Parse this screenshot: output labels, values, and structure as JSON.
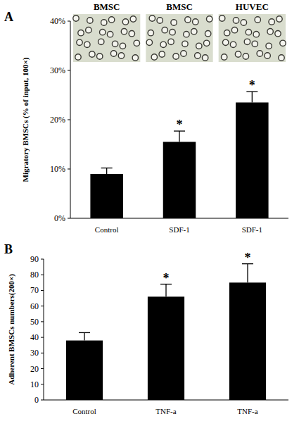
{
  "chart_data": [
    {
      "type": "bar",
      "panel": "A",
      "image_labels": [
        "BMSC",
        "BMSC",
        "HUVEC"
      ],
      "ylabel": "Migratory BMSCs (% of input, 100×)",
      "categories": [
        "Control",
        "SDF-1",
        "SDF-1"
      ],
      "values": [
        9,
        15.5,
        23.5
      ],
      "errors": [
        1.2,
        2.2,
        2.2
      ],
      "significance": [
        null,
        "*",
        "*"
      ],
      "color": "#000000",
      "ylim": [
        0,
        40
      ],
      "yticks": [
        {
          "value": 0,
          "label": "0%"
        },
        {
          "value": 10,
          "label": "10%"
        },
        {
          "value": 20,
          "label": "20%"
        },
        {
          "value": 30,
          "label": "30%"
        },
        {
          "value": 40,
          "label": "40%"
        }
      ],
      "grid": false
    },
    {
      "type": "bar",
      "panel": "B",
      "ylabel": "Adherent BMSCs numbers(200×)",
      "categories": [
        "Control",
        "TNF-a",
        "TNF-a"
      ],
      "values": [
        38,
        66,
        75
      ],
      "errors": [
        5,
        8,
        12
      ],
      "significance": [
        null,
        "*",
        "*"
      ],
      "color": "#000000",
      "ylim": [
        0,
        90
      ],
      "yticks": [
        0,
        10,
        20,
        30,
        40,
        50,
        60,
        70,
        80,
        90
      ],
      "grid": false
    }
  ]
}
